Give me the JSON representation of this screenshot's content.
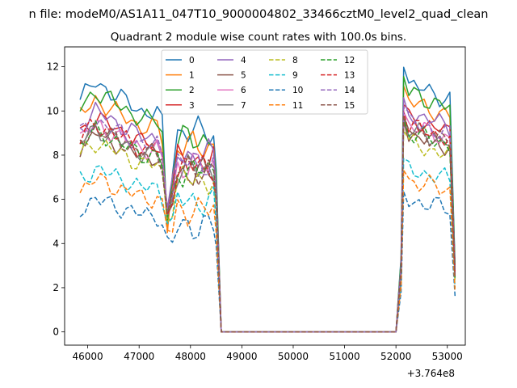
{
  "figure": {
    "suptitle": "n file: modeM0/AS1A11_047T10_9000004802_33466cztM0_level2_quad_clean",
    "offset_text": "+3.764e8"
  },
  "chart_data": {
    "type": "line",
    "title": "Quadrant 2 module wise count rates with 100.0s bins.",
    "xlabel": "",
    "ylabel": "",
    "x_offset": 376400000,
    "xlim": [
      45550,
      53350
    ],
    "ylim": [
      -0.6,
      12.9
    ],
    "xticks": [
      46000,
      47000,
      48000,
      49000,
      50000,
      51000,
      52000,
      53000
    ],
    "yticks": [
      0,
      2,
      4,
      6,
      8,
      10,
      12
    ],
    "grid": false,
    "legend_position": "upper-center",
    "legend_columns": 4,
    "series": [
      {
        "name": "0",
        "color": "#1f77b4",
        "dash": "solid",
        "level": 11.3,
        "dip": 4.6
      },
      {
        "name": "1",
        "color": "#ff7f0e",
        "dash": "solid",
        "level": 10.5,
        "dip": 4.5
      },
      {
        "name": "2",
        "color": "#2ca02c",
        "dash": "solid",
        "level": 10.9,
        "dip": 5.0
      },
      {
        "name": "3",
        "color": "#d62728",
        "dash": "solid",
        "level": 9.7,
        "dip": 5.5
      },
      {
        "name": "4",
        "color": "#9467bd",
        "dash": "solid",
        "level": 10.0,
        "dip": 5.6
      },
      {
        "name": "5",
        "color": "#8c564b",
        "dash": "solid",
        "level": 9.0,
        "dip": 5.3
      },
      {
        "name": "6",
        "color": "#e377c2",
        "dash": "solid",
        "level": 9.4,
        "dip": 5.4
      },
      {
        "name": "7",
        "color": "#7f7f7f",
        "dash": "solid",
        "level": 9.2,
        "dip": 5.2
      },
      {
        "name": "8",
        "color": "#bcbd22",
        "dash": "dashed",
        "level": 8.6,
        "dip": 5.0
      },
      {
        "name": "9",
        "color": "#17becf",
        "dash": "dashed",
        "level": 7.4,
        "dip": 4.9
      },
      {
        "name": "10",
        "color": "#1f77b4",
        "dash": "dashed",
        "level": 6.0,
        "dip": 4.3
      },
      {
        "name": "11",
        "color": "#ff7f0e",
        "dash": "dashed",
        "level": 6.9,
        "dip": 4.6
      },
      {
        "name": "12",
        "color": "#2ca02c",
        "dash": "dashed",
        "level": 9.1,
        "dip": 5.2
      },
      {
        "name": "13",
        "color": "#d62728",
        "dash": "dashed",
        "level": 9.4,
        "dip": 5.3
      },
      {
        "name": "14",
        "color": "#9467bd",
        "dash": "dashed",
        "level": 9.6,
        "dip": 5.5
      },
      {
        "name": "15",
        "color": "#8c564b",
        "dash": "dashed",
        "level": 9.2,
        "dip": 5.4
      }
    ]
  }
}
